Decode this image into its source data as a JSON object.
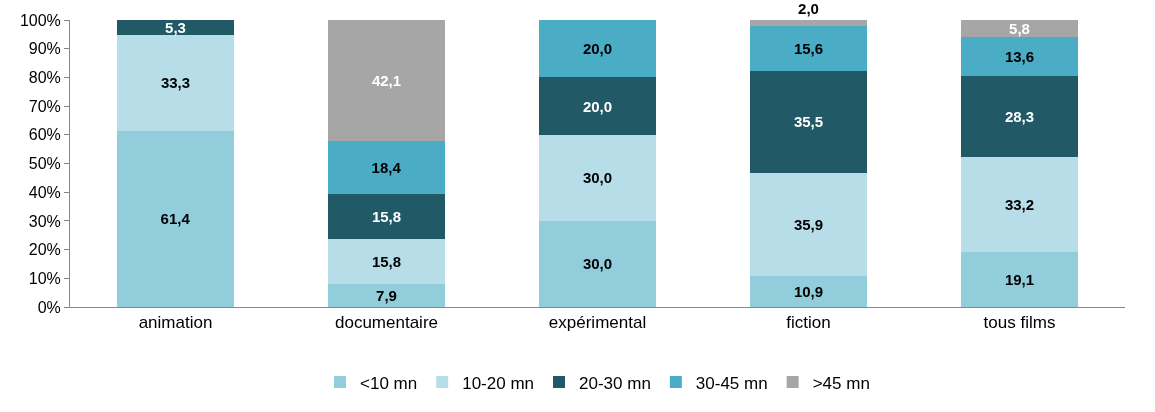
{
  "chart_data": {
    "type": "bar",
    "stacked": true,
    "categories": [
      "animation",
      "documentaire",
      "expérimental",
      "fiction",
      "tous films"
    ],
    "series": [
      {
        "name": "<10 mn",
        "color": "#92cddc",
        "values": [
          61.4,
          7.9,
          30.0,
          10.9,
          19.1
        ],
        "value_labels": [
          "61,4",
          "7,9",
          "30,0",
          "10,9",
          "19,1"
        ]
      },
      {
        "name": "10-20 mn",
        "color": "#b7dee8",
        "values": [
          33.3,
          15.8,
          30.0,
          35.9,
          33.2
        ],
        "value_labels": [
          "33,3",
          "15,8",
          "30,0",
          "35,9",
          "33,2"
        ]
      },
      {
        "name": "20-30 mn",
        "color": "#215967",
        "values": [
          5.3,
          15.8,
          20.0,
          35.5,
          28.3
        ],
        "value_labels": [
          "5,3",
          "15,8",
          "20,0",
          "35,5",
          "28,3"
        ]
      },
      {
        "name": "30-45 mn",
        "color": "#4bacc6",
        "values": [
          null,
          18.4,
          20.0,
          15.6,
          13.6
        ],
        "value_labels": [
          null,
          "18,4",
          "20,0",
          "15,6",
          "13,6"
        ]
      },
      {
        "name": ">45 mn",
        "color": "#a6a6a6",
        "values": [
          null,
          42.1,
          null,
          2.0,
          5.8
        ],
        "value_labels": [
          null,
          "42,1",
          null,
          "2,0",
          "5,8"
        ]
      }
    ],
    "ylim": [
      0,
      100
    ],
    "yticks": [
      {
        "value": 0,
        "label": "0%"
      },
      {
        "value": 10,
        "label": "10%"
      },
      {
        "value": 20,
        "label": "20%"
      },
      {
        "value": 30,
        "label": "30%"
      },
      {
        "value": 40,
        "label": "40%"
      },
      {
        "value": 50,
        "label": "50%"
      },
      {
        "value": 60,
        "label": "60%"
      },
      {
        "value": 70,
        "label": "70%"
      },
      {
        "value": 80,
        "label": "80%"
      },
      {
        "value": 90,
        "label": "90%"
      },
      {
        "value": 100,
        "label": "100%"
      }
    ],
    "grid": false,
    "legend": "bottom"
  }
}
